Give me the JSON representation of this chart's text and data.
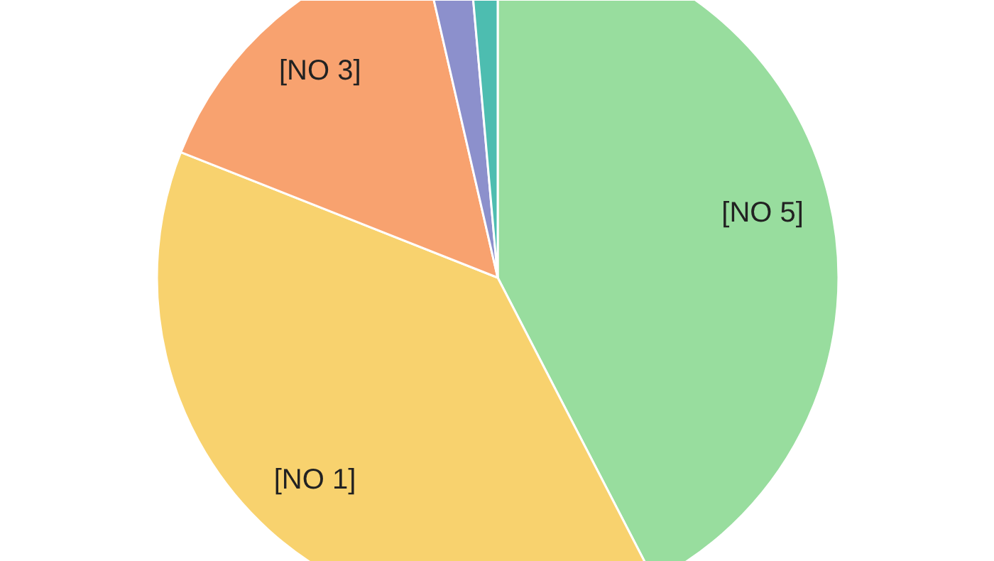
{
  "chart_data": {
    "type": "pie",
    "categories": [
      "[NO 5]",
      "[NO 1]",
      "[NO 3]",
      null,
      null
    ],
    "values": [
      42.4,
      38.6,
      15.4,
      2.2,
      1.4
    ],
    "colors": [
      "#98dd9e",
      "#f8d26e",
      "#f8a26f",
      "#8c90cc",
      "#4dbdb0"
    ]
  }
}
